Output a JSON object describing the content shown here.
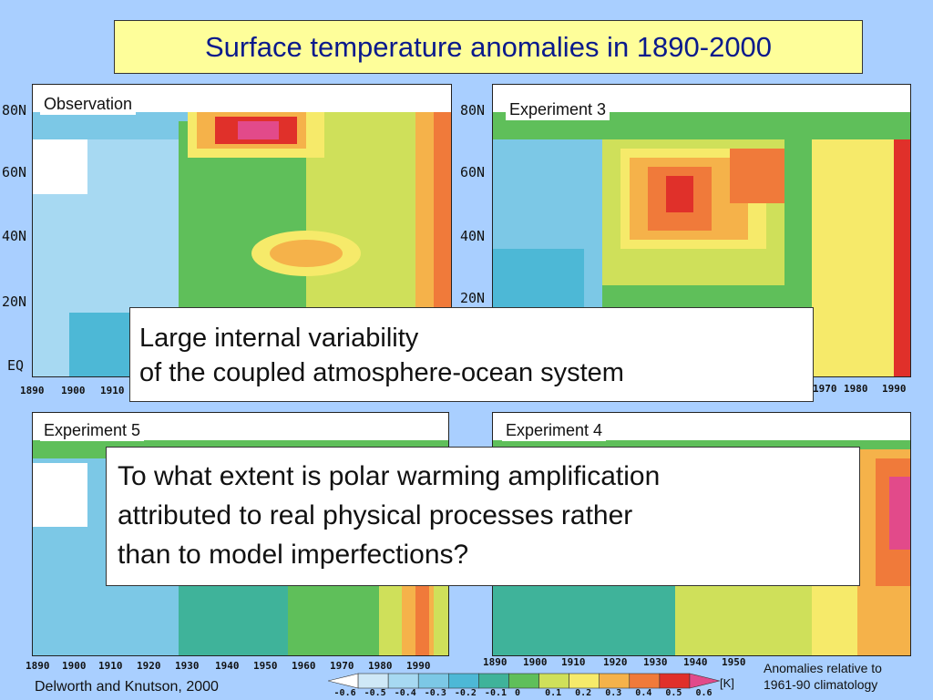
{
  "slide_title": "Surface temperature anomalies in 1890-2000",
  "panels": {
    "observation": {
      "label": "Observation"
    },
    "experiment3": {
      "label": "Experiment 3"
    },
    "experiment5": {
      "label": "Experiment 5"
    },
    "experiment4": {
      "label": "Experiment 4"
    }
  },
  "y_ticks": [
    "80N",
    "60N",
    "40N",
    "20N",
    "EQ"
  ],
  "x_ticks_top_left": [
    "1890",
    "1900",
    "1910"
  ],
  "x_ticks_top_right": [
    "1970",
    "1980",
    "1990"
  ],
  "x_ticks_bottom_left": [
    "1890",
    "1900",
    "1910",
    "1920",
    "1930",
    "1940",
    "1950",
    "1960",
    "1970",
    "1980",
    "1990"
  ],
  "x_ticks_bottom_right": [
    "1890",
    "1900",
    "1910",
    "1920",
    "1930",
    "1940",
    "1950"
  ],
  "callout_variability": {
    "line1": "Large internal variability",
    "line2": "of the coupled atmosphere-ocean system"
  },
  "callout_question": {
    "line1": "To what extent is polar warming amplification",
    "line2": "attributed to real physical processes rather",
    "line3": "than to model imperfections?"
  },
  "citation": "Delworth and Knutson, 2000",
  "colorbar": {
    "values": [
      "-0.6",
      "-0.5",
      "-0.4",
      "-0.3",
      "-0.2",
      "-0.1",
      "0",
      "0.1",
      "0.2",
      "0.3",
      "0.4",
      "0.5",
      "0.6"
    ],
    "unit": "[K]",
    "colors": [
      "#ffffff",
      "#cfe8f7",
      "#a7d9f2",
      "#7cc8e6",
      "#4db8d6",
      "#3fb39a",
      "#5fbf5a",
      "#cfe05a",
      "#f6ea6a",
      "#f5b24a",
      "#f07a3a",
      "#e0302a",
      "#e24a8a"
    ]
  },
  "anomaly_note": {
    "line1": "Anomalies relative to",
    "line2": "1961-90 climatology"
  },
  "colors": {
    "background": "#a9cfff",
    "title_box": "#fefe9a",
    "title_text": "#0a1a8c"
  }
}
